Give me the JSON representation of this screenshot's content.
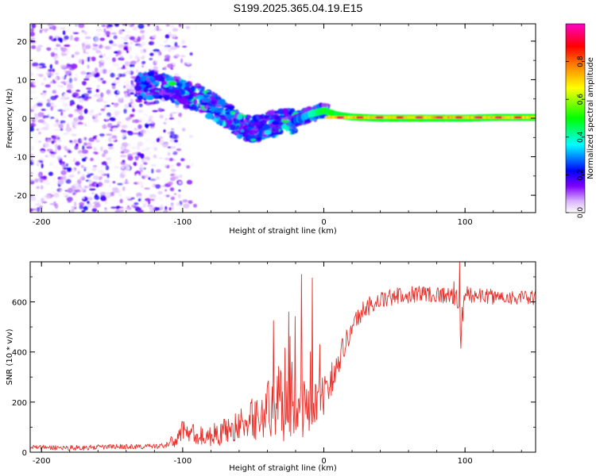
{
  "title": "S199.2025.365.04.19.E15",
  "chart_data": [
    {
      "type": "heatmap",
      "xlabel": "Height of straight line (km)",
      "ylabel": "Frequency (Hz)",
      "xlim": [
        -208,
        150
      ],
      "ylim": [
        -24.5,
        24.5
      ],
      "x_ticks": [
        -200,
        -100,
        0,
        100
      ],
      "x_tick_labels": [
        "-200",
        "-100",
        "0",
        "100"
      ],
      "y_ticks": [
        20,
        10,
        0,
        -10,
        -20
      ],
      "y_tick_labels": [
        "20",
        "10",
        "0",
        "-10",
        "-20"
      ],
      "colorbar": {
        "label": "Normalized spectral amplitude",
        "range": [
          0,
          1
        ],
        "ticks": [
          0.0,
          0.2,
          0.4,
          0.6,
          0.8
        ],
        "tick_labels": [
          "0.0",
          "0.2",
          "0.4",
          "0.6",
          "0.8"
        ],
        "colors": [
          "#ffffff",
          "#d9b3ff",
          "#8000ff",
          "#0000ff",
          "#00ffff",
          "#00ff00",
          "#ffff00",
          "#ff8000",
          "#ff0000",
          "#ff00c8"
        ]
      },
      "features": {
        "noise_region_x": [
          -208,
          -100
        ],
        "noise_region_y": [
          -24.5,
          24.5
        ],
        "signal_track": {
          "x": [
            -132,
            -120,
            -110,
            -100,
            -90,
            -80,
            -70,
            -60,
            -50,
            -40,
            -30,
            -20,
            -10,
            0,
            10,
            20,
            40,
            60,
            80,
            100,
            120,
            150
          ],
          "y": [
            8.5,
            8.5,
            8,
            6.5,
            5.5,
            3.5,
            1,
            -1.5,
            -3,
            -2,
            -1,
            -0.5,
            1,
            2,
            0.8,
            0.3,
            0,
            0,
            0,
            0,
            0.2,
            0.2
          ]
        },
        "tone_band": {
          "x_start": 0,
          "x_end": 150,
          "y": 0.2,
          "peak_amplitude": 0.95
        }
      }
    },
    {
      "type": "line",
      "xlabel": "Height of straight line (km)",
      "ylabel": "SNR (10 * v/v)",
      "xlim": [
        -208,
        150
      ],
      "ylim": [
        0,
        760
      ],
      "x_ticks": [
        -200,
        -100,
        0,
        100
      ],
      "x_tick_labels": [
        "-200",
        "-100",
        "0",
        "100"
      ],
      "y_ticks": [
        0,
        200,
        400,
        600
      ],
      "y_tick_labels": [
        "0",
        "200",
        "400",
        "600"
      ],
      "color": "#e8302a",
      "series": [
        {
          "name": "SNR",
          "x": [
            -208,
            -190,
            -170,
            -150,
            -130,
            -115,
            -105,
            -100,
            -95,
            -85,
            -75,
            -65,
            -55,
            -45,
            -35,
            -30,
            -25,
            -20,
            -15,
            -10,
            -5,
            0,
            5,
            10,
            15,
            20,
            25,
            30,
            40,
            50,
            60,
            70,
            80,
            90,
            95,
            97,
            100,
            110,
            120,
            130,
            140,
            150
          ],
          "mean": [
            20,
            18,
            18,
            22,
            22,
            25,
            45,
            90,
            80,
            60,
            75,
            95,
            120,
            150,
            180,
            200,
            220,
            210,
            200,
            175,
            200,
            220,
            290,
            370,
            430,
            500,
            545,
            580,
            605,
            620,
            630,
            635,
            630,
            625,
            640,
            480,
            630,
            625,
            620,
            620,
            615,
            615
          ],
          "noise": [
            10,
            10,
            10,
            10,
            10,
            10,
            30,
            40,
            40,
            40,
            50,
            55,
            70,
            100,
            140,
            160,
            170,
            160,
            140,
            110,
            90,
            80,
            70,
            60,
            50,
            45,
            40,
            40,
            35,
            35,
            35,
            35,
            35,
            35,
            70,
            60,
            35,
            30,
            30,
            30,
            30,
            30
          ],
          "spikes": [
            {
              "x": -16,
              "y": 710
            },
            {
              "x": -8,
              "y": 695
            },
            {
              "x": -25,
              "y": 560
            },
            {
              "x": -3,
              "y": 430
            },
            {
              "x": 96,
              "y": 760
            },
            {
              "x": 97,
              "y": 415
            }
          ]
        }
      ]
    }
  ]
}
